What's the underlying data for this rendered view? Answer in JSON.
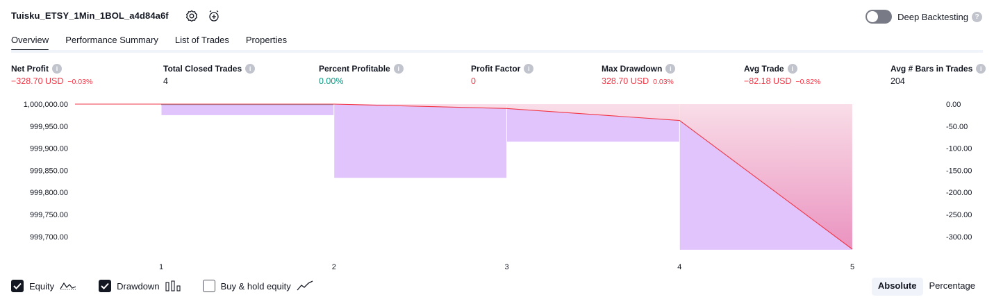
{
  "header": {
    "strategy_title": "Tuisku_ETSY_1Min_1BOL_a4d84a6f",
    "deep_backtesting_label": "Deep Backtesting",
    "deep_backtesting_on": false
  },
  "tabs": [
    {
      "label": "Overview",
      "active": true
    },
    {
      "label": "Performance Summary",
      "active": false
    },
    {
      "label": "List of Trades",
      "active": false
    },
    {
      "label": "Properties",
      "active": false
    }
  ],
  "metrics": {
    "net_profit": {
      "label": "Net Profit",
      "value": "−328.70 USD",
      "sub": "−0.03%"
    },
    "total_closed_trades": {
      "label": "Total Closed Trades",
      "value": "4"
    },
    "percent_profitable": {
      "label": "Percent Profitable",
      "value": "0.00%"
    },
    "profit_factor": {
      "label": "Profit Factor",
      "value": "0"
    },
    "max_drawdown": {
      "label": "Max Drawdown",
      "value": "328.70 USD",
      "sub": "0.03%"
    },
    "avg_trade": {
      "label": "Avg Trade",
      "value": "−82.18 USD",
      "sub": "−0.82%"
    },
    "avg_bars": {
      "label": "Avg # Bars in Trades",
      "value": "204"
    }
  },
  "colors": {
    "negative": "#f23645",
    "positive": "#089981",
    "drawdown_bar": "#e1c4fc",
    "equity_line": "#f23645",
    "equity_fill_top": "#fde2e4",
    "equity_fill_bottom": "#ec8ab5"
  },
  "chart_data": {
    "type": "line",
    "left_axis": {
      "label": "Equity",
      "ticks": [
        "1,000,000.00",
        "999,950.00",
        "999,900.00",
        "999,850.00",
        "999,800.00",
        "999,750.00",
        "999,700.00"
      ],
      "range": [
        999671.3,
        1000000
      ]
    },
    "right_axis": {
      "label": "Drawdown",
      "ticks": [
        "0.00",
        "-50.00",
        "-100.00",
        "-150.00",
        "-200.00",
        "-250.00",
        "-300.00"
      ],
      "range": [
        -328.7,
        0
      ]
    },
    "x_ticks": [
      "1",
      "2",
      "3",
      "4",
      "5"
    ],
    "series": [
      {
        "name": "Equity",
        "x": [
          0,
          1,
          2,
          3,
          4,
          5
        ],
        "values": [
          1000000,
          1000000,
          1000000,
          999990,
          999963,
          999671.3
        ]
      },
      {
        "name": "Drawdown",
        "type": "bar",
        "x": [
          1.5,
          2.5,
          3.5,
          4.5
        ],
        "values": [
          -25,
          -167,
          -85,
          -330
        ]
      }
    ]
  },
  "legend": [
    {
      "label": "Equity",
      "checked": true,
      "icon": "equity-line-icon"
    },
    {
      "label": "Drawdown",
      "checked": true,
      "icon": "drawdown-bars-icon"
    },
    {
      "label": "Buy & hold equity",
      "checked": false,
      "icon": "buy-hold-line-icon"
    }
  ],
  "mode_switch": {
    "absolute_label": "Absolute",
    "percentage_label": "Percentage",
    "active": "Absolute"
  }
}
